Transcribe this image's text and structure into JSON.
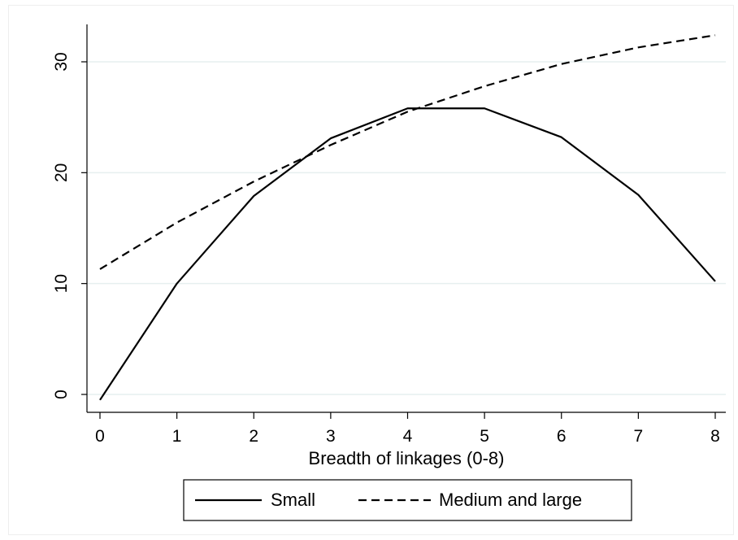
{
  "chart_data": {
    "type": "line",
    "title": "",
    "xlabel": "Breadth of linkages (0-8)",
    "ylabel": "",
    "x": [
      0,
      1,
      2,
      3,
      4,
      5,
      6,
      7,
      8
    ],
    "xticks": [
      "0",
      "1",
      "2",
      "3",
      "4",
      "5",
      "6",
      "7",
      "8"
    ],
    "yticks": [
      "0",
      "10",
      "20",
      "30"
    ],
    "xlim": [
      0,
      8
    ],
    "ylim": [
      -0.5,
      32.5
    ],
    "grid": "horizontal",
    "legend_position": "bottom",
    "series": [
      {
        "name": "Small",
        "style": "solid",
        "color": "#000000",
        "values": [
          -0.5,
          10,
          17.9,
          23.1,
          25.8,
          25.8,
          23.2,
          18,
          10.2
        ]
      },
      {
        "name": "Medium and large",
        "style": "dashed",
        "color": "#000000",
        "values": [
          11.3,
          15.5,
          19.2,
          22.5,
          25.5,
          27.8,
          29.8,
          31.3,
          32.4
        ]
      }
    ]
  }
}
